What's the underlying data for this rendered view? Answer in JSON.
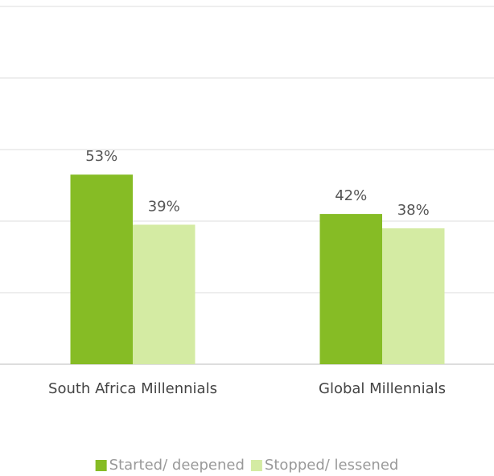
{
  "chart_data": {
    "type": "bar",
    "categories": [
      "South Africa Millennials",
      "Global Millennials"
    ],
    "series": [
      {
        "name": "Started/ deepened",
        "color": "#86bc25",
        "values": [
          53,
          42
        ],
        "value_labels": [
          "53%",
          "42%"
        ]
      },
      {
        "name": "Stopped/ lessened",
        "color": "#d4eba3",
        "values": [
          39,
          38
        ],
        "value_labels": [
          "39%",
          "38%"
        ]
      }
    ],
    "ylim": [
      0,
      100
    ],
    "yticks": [
      0,
      20,
      40,
      60,
      80,
      100
    ],
    "grid": true,
    "legend": "bottom"
  }
}
